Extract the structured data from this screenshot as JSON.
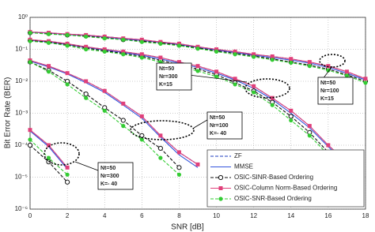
{
  "chart_data": {
    "type": "line",
    "x_label": "SNR [dB]",
    "y_label": "Bit Error Rate (BER)",
    "x": [
      0,
      1,
      2,
      3,
      4,
      5,
      6,
      7,
      8,
      9,
      10,
      11,
      12,
      13,
      14,
      15,
      16,
      17,
      18
    ],
    "xlim": [
      0,
      18
    ],
    "xticks": [
      0,
      2,
      4,
      6,
      8,
      10,
      12,
      14,
      16,
      18
    ],
    "ylim": [
      1e-06,
      1
    ],
    "log_y": true,
    "grid": true,
    "legend": "lower right",
    "yticks": [
      {
        "value": 1e-06,
        "label": "10⁻⁶"
      },
      {
        "value": 1e-05,
        "label": "10⁻⁵"
      },
      {
        "value": 0.0001,
        "label": "10⁻⁴"
      },
      {
        "value": 0.001,
        "label": "10⁻³"
      },
      {
        "value": 0.01,
        "label": "10⁻²"
      },
      {
        "value": 0.1,
        "label": "10⁻¹"
      },
      {
        "value": 1,
        "label": "10⁰"
      }
    ],
    "series": [
      {
        "name": "ZF",
        "color": "#1f3fbf",
        "dashed": true,
        "marker": "none",
        "groups": [
          {
            "values": [
              0.35,
              0.33,
              0.3,
              0.28,
              0.25,
              0.22,
              0.2,
              0.17,
              0.15,
              0.12,
              0.1,
              0.085,
              0.07,
              0.06,
              0.05,
              0.04,
              0.03,
              0.02,
              0.012
            ]
          },
          {
            "values": [
              0.2,
              0.18,
              0.15,
              0.12,
              0.1,
              0.085,
              0.07,
              0.055,
              0.04,
              0.03,
              0.02,
              0.012,
              0.007,
              0.003,
              0.0012,
              0.0004,
              0.0001,
              3e-05,
              null
            ]
          },
          {
            "values": [
              0.045,
              0.03,
              0.018,
              0.01,
              0.005,
              0.002,
              0.0008,
              0.0002,
              6e-05,
              2.5e-05,
              null,
              null,
              null,
              null,
              null,
              null,
              null,
              null,
              null
            ]
          },
          {
            "values": [
              0.0003,
              0.0001,
              2e-05,
              null,
              null,
              null,
              null,
              null,
              null,
              null,
              null,
              null,
              null,
              null,
              null,
              null,
              null,
              null,
              null
            ]
          }
        ]
      },
      {
        "name": "MMSE",
        "color": "#3355dd",
        "dashed": false,
        "marker": "none",
        "groups": [
          {
            "values": [
              0.34,
              0.32,
              0.29,
              0.27,
              0.24,
              0.21,
              0.19,
              0.165,
              0.14,
              0.115,
              0.095,
              0.08,
              0.066,
              0.055,
              0.046,
              0.037,
              0.027,
              0.018,
              0.011
            ]
          },
          {
            "values": [
              0.19,
              0.17,
              0.14,
              0.115,
              0.095,
              0.08,
              0.065,
              0.05,
              0.037,
              0.027,
              0.018,
              0.011,
              0.006,
              0.0027,
              0.001,
              0.00035,
              9e-05,
              2.5e-05,
              null
            ]
          },
          {
            "values": [
              0.043,
              0.028,
              0.017,
              0.009,
              0.0045,
              0.0018,
              0.0007,
              0.00018,
              5e-05,
              2e-05,
              null,
              null,
              null,
              null,
              null,
              null,
              null,
              null,
              null
            ]
          },
          {
            "values": [
              0.00028,
              9e-05,
              1.8e-05,
              null,
              null,
              null,
              null,
              null,
              null,
              null,
              null,
              null,
              null,
              null,
              null,
              null,
              null,
              null,
              null
            ]
          }
        ]
      },
      {
        "name": "OSIC-SINR-Based Ordering",
        "color": "#111111",
        "dashed": true,
        "marker": "circle",
        "groups": [
          {
            "values": [
              0.33,
              0.31,
              0.28,
              0.26,
              0.23,
              0.2,
              0.18,
              0.16,
              0.135,
              0.11,
              0.09,
              0.075,
              0.062,
              0.05,
              0.04,
              0.032,
              0.024,
              0.016,
              0.01
            ]
          },
          {
            "values": [
              0.19,
              0.17,
              0.14,
              0.11,
              0.09,
              0.075,
              0.06,
              0.045,
              0.033,
              0.024,
              0.016,
              0.009,
              0.005,
              0.0022,
              0.0008,
              0.00025,
              6e-05,
              1.5e-05,
              null
            ]
          },
          {
            "values": [
              0.04,
              0.022,
              0.01,
              0.004,
              0.0015,
              0.0006,
              0.0002,
              8e-05,
              2e-05,
              null,
              null,
              null,
              null,
              null,
              null,
              null,
              null,
              null,
              null
            ]
          },
          {
            "values": [
              0.0001,
              3e-05,
              7e-06,
              null,
              null,
              null,
              null,
              null,
              null,
              null,
              null,
              null,
              null,
              null,
              null,
              null,
              null,
              null,
              null
            ]
          }
        ]
      },
      {
        "name": "OSIC-Column Norm-Based Ordering",
        "color": "#e0407a",
        "dashed": false,
        "marker": "square",
        "groups": [
          {
            "values": [
              0.35,
              0.33,
              0.3,
              0.28,
              0.25,
              0.22,
              0.2,
              0.17,
              0.15,
              0.12,
              0.1,
              0.085,
              0.07,
              0.06,
              0.05,
              0.04,
              0.03,
              0.02,
              0.012
            ]
          },
          {
            "values": [
              0.2,
              0.18,
              0.15,
              0.12,
              0.1,
              0.085,
              0.07,
              0.055,
              0.04,
              0.03,
              0.02,
              0.012,
              0.007,
              0.003,
              0.0012,
              0.0004,
              0.0001,
              3e-05,
              null
            ]
          },
          {
            "values": [
              0.045,
              0.03,
              0.018,
              0.01,
              0.005,
              0.002,
              0.0008,
              0.0002,
              6e-05,
              2.5e-05,
              null,
              null,
              null,
              null,
              null,
              null,
              null,
              null,
              null
            ]
          },
          {
            "values": [
              0.0003,
              0.0001,
              2e-05,
              null,
              null,
              null,
              null,
              null,
              null,
              null,
              null,
              null,
              null,
              null,
              null,
              null,
              null,
              null,
              null
            ]
          }
        ]
      },
      {
        "name": "OSIC-SNR-Based Ordering",
        "color": "#33cc33",
        "dashed": true,
        "marker": "dot",
        "groups": [
          {
            "values": [
              0.33,
              0.3,
              0.28,
              0.25,
              0.22,
              0.2,
              0.17,
              0.15,
              0.13,
              0.105,
              0.085,
              0.07,
              0.058,
              0.047,
              0.038,
              0.03,
              0.022,
              0.015,
              0.009
            ]
          },
          {
            "values": [
              0.18,
              0.16,
              0.13,
              0.1,
              0.085,
              0.07,
              0.055,
              0.04,
              0.03,
              0.021,
              0.014,
              0.008,
              0.0045,
              0.0018,
              0.0006,
              0.0002,
              5e-05,
              1.2e-05,
              null
            ]
          },
          {
            "values": [
              0.04,
              0.02,
              0.008,
              0.003,
              0.0012,
              0.0004,
              0.00015,
              4e-05,
              1.2e-05,
              null,
              null,
              null,
              null,
              null,
              null,
              null,
              null,
              null,
              null
            ]
          },
          {
            "values": [
              0.00015,
              4e-05,
              1.2e-05,
              null,
              null,
              null,
              null,
              null,
              null,
              null,
              null,
              null,
              null,
              null,
              null,
              null,
              null,
              null,
              null
            ]
          }
        ]
      }
    ],
    "annotations": [
      {
        "lines": [
          "Nt=50",
          "Nr=300",
          "K=15"
        ]
      },
      {
        "lines": [
          "Nt=50",
          "Nr=100",
          "K=15"
        ]
      },
      {
        "lines": [
          "Nt=50",
          "Nr=100",
          "K=- 40"
        ]
      },
      {
        "lines": [
          "Nt=50",
          "Nr=300",
          "K=- 40"
        ]
      }
    ]
  }
}
